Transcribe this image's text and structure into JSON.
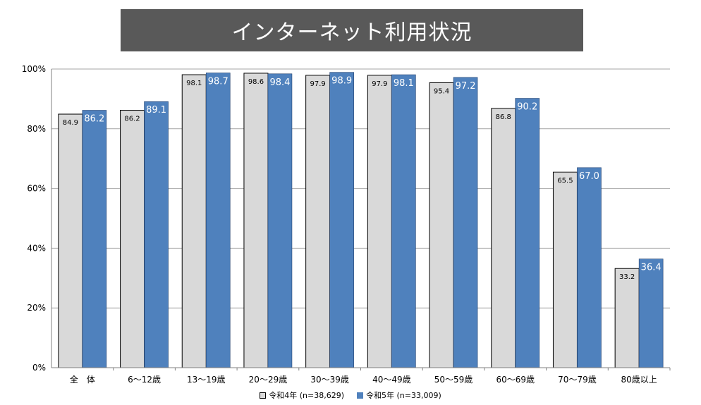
{
  "header": {
    "title": "インターネット利用状況"
  },
  "chart_data": {
    "type": "bar",
    "title": "インターネット利用状況",
    "categories": [
      "全　体",
      "6～12歳",
      "13～19歳",
      "20～29歳",
      "30～39歳",
      "40～49歳",
      "50～59歳",
      "60～69歳",
      "70～79歳",
      "80歳以上"
    ],
    "series": [
      {
        "name": "令和4年 (n=38,629)",
        "color": "#d9d9d9",
        "values": [
          84.9,
          86.2,
          98.1,
          98.6,
          97.9,
          97.9,
          95.4,
          86.8,
          65.5,
          33.2
        ],
        "labels": [
          "84.9",
          "86.2",
          "98.1",
          "98.6",
          "97.9",
          "97.9",
          "95.4",
          "86.8",
          "65.5",
          "33.2"
        ]
      },
      {
        "name": "令和5年 (n=33,009)",
        "color": "#4f81bd",
        "values": [
          86.2,
          89.1,
          98.7,
          98.4,
          98.9,
          98.1,
          97.2,
          90.2,
          67.0,
          36.4
        ],
        "labels": [
          "86.2",
          "89.1",
          "98.7",
          "98.4",
          "98.9",
          "98.1",
          "97.2",
          "90.2",
          "67.0",
          "36.4"
        ]
      }
    ],
    "ylim": [
      0,
      100
    ],
    "yticks": [
      "0%",
      "20%",
      "40%",
      "60%",
      "80%",
      "100%"
    ],
    "ytick_values": [
      0,
      20,
      40,
      60,
      80,
      100
    ],
    "grid": true,
    "legend": "bottom"
  }
}
